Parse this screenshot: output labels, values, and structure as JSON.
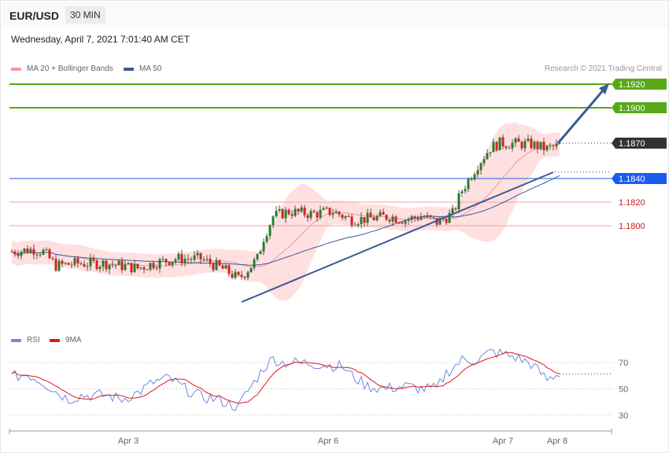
{
  "header": {
    "symbol": "EUR/USD",
    "timeframe": "30 MIN",
    "datetime": "Wednesday, April 7, 2021 7:01:40 AM CET",
    "copyright": "Research © 2021 Trading Central"
  },
  "colors": {
    "ma20": "#f29898",
    "ma50": "#3a5a96",
    "band_fill": "#ffe0e0",
    "bull": "#2a7a2a",
    "bear": "#d42020",
    "resistance": "#58a818",
    "support_blue": "#1a5cf0",
    "support_red": "#d01818",
    "current": "#333333",
    "trend": "#3a5a96",
    "rsi": "#6a8ae0",
    "rsi_ma": "#e01818"
  },
  "chart_data": [
    {
      "type": "candlestick",
      "legend": [
        {
          "name": "MA 20 + Bollinger Bands",
          "color": "#f29898"
        },
        {
          "name": "MA 50",
          "color": "#3a5a96"
        }
      ],
      "x_ticks": [
        "Apr 3",
        "Apr 6",
        "Apr 7",
        "Apr 8"
      ],
      "y_range": [
        1.17,
        1.194
      ],
      "levels": [
        {
          "value": 1.192,
          "label": "1.1920",
          "kind": "resistance"
        },
        {
          "value": 1.19,
          "label": "1.1900",
          "kind": "resistance"
        },
        {
          "value": 1.187,
          "label": "1.1870",
          "kind": "current"
        },
        {
          "value": 1.184,
          "label": "1.1840",
          "kind": "pivot"
        },
        {
          "value": 1.182,
          "label": "1.1820",
          "kind": "support"
        },
        {
          "value": 1.18,
          "label": "1.1800",
          "kind": "support"
        }
      ],
      "anchors": [
        [
          0,
          1.1778
        ],
        [
          7,
          1.178
        ],
        [
          10,
          1.1778
        ],
        [
          14,
          1.1766
        ],
        [
          20,
          1.1768
        ],
        [
          30,
          1.1768
        ],
        [
          40,
          1.1764
        ],
        [
          45,
          1.1768
        ],
        [
          52,
          1.1772
        ],
        [
          60,
          1.1772
        ],
        [
          68,
          1.1762
        ],
        [
          72,
          1.1755
        ],
        [
          74,
          1.176
        ],
        [
          78,
          1.1772
        ],
        [
          80,
          1.179
        ],
        [
          83,
          1.1808
        ],
        [
          88,
          1.1812
        ],
        [
          95,
          1.181
        ],
        [
          102,
          1.1812
        ],
        [
          108,
          1.1805
        ],
        [
          113,
          1.1806
        ],
        [
          120,
          1.1808
        ],
        [
          125,
          1.1805
        ],
        [
          130,
          1.1808
        ],
        [
          135,
          1.1803
        ],
        [
          140,
          1.181
        ],
        [
          143,
          1.183
        ],
        [
          148,
          1.1852
        ],
        [
          152,
          1.1866
        ],
        [
          155,
          1.187
        ],
        [
          165,
          1.1869
        ],
        [
          170,
          1.1865
        ],
        [
          174,
          1.1868
        ]
      ],
      "rsi": {
        "legend": [
          {
            "name": "RSI",
            "color": "#6a8ae0"
          },
          {
            "name": "9MA",
            "color": "#e01818"
          }
        ],
        "y_range": [
          20,
          80
        ],
        "levels": [
          70,
          50,
          30
        ],
        "anchors": [
          [
            0,
            59
          ],
          [
            5,
            61
          ],
          [
            10,
            55
          ],
          [
            14,
            48
          ],
          [
            18,
            42
          ],
          [
            22,
            45
          ],
          [
            30,
            45
          ],
          [
            35,
            42
          ],
          [
            40,
            47
          ],
          [
            45,
            55
          ],
          [
            50,
            58
          ],
          [
            55,
            50
          ],
          [
            60,
            44
          ],
          [
            65,
            42
          ],
          [
            72,
            36
          ],
          [
            74,
            45
          ],
          [
            77,
            55
          ],
          [
            80,
            66
          ],
          [
            83,
            73
          ],
          [
            86,
            70
          ],
          [
            92,
            70
          ],
          [
            100,
            68
          ],
          [
            105,
            67
          ],
          [
            108,
            60
          ],
          [
            113,
            52
          ],
          [
            118,
            50
          ],
          [
            125,
            52
          ],
          [
            130,
            50
          ],
          [
            135,
            50
          ],
          [
            138,
            62
          ],
          [
            143,
            72
          ],
          [
            148,
            72
          ],
          [
            152,
            78
          ],
          [
            155,
            77
          ],
          [
            160,
            74
          ],
          [
            165,
            69
          ],
          [
            170,
            57
          ],
          [
            174,
            62
          ]
        ]
      }
    }
  ]
}
